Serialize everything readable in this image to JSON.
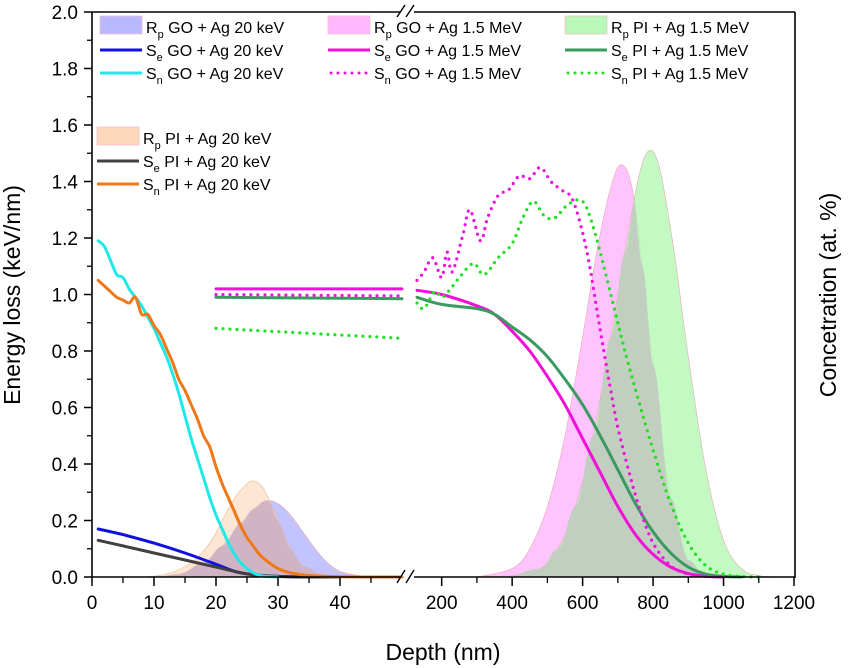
{
  "chart_data": {
    "type": "line",
    "title": "",
    "xlabel": "Depth (nm)",
    "ylabel": "Energy loss (keV/nm)",
    "ylabel_right": "Concetration (at. %)",
    "ylim": [
      0,
      2.0
    ],
    "yticks": [
      "0.0",
      "0.2",
      "0.4",
      "0.6",
      "0.8",
      "1.0",
      "1.2",
      "1.4",
      "1.6",
      "1.8",
      "2.0"
    ],
    "x_segments": [
      {
        "name": "low",
        "xlim": [
          0,
          50
        ],
        "xticks": [
          "0",
          "10",
          "20",
          "30",
          "40"
        ]
      },
      {
        "name": "high",
        "xlim": [
          120,
          1200
        ],
        "xticks": [
          "200",
          "400",
          "600",
          "800",
          "1000",
          "1200"
        ]
      }
    ],
    "axis_break": "between 50 and 120 nm",
    "grid": false,
    "legend": [
      {
        "group": "20keV-GO",
        "placement": "top-left",
        "items": [
          {
            "key": "Rp_GO_20keV",
            "main": "R",
            "sub": "p",
            "rest": " GO + Ag 20 keV",
            "kind": "area",
            "color": "#b8b8ff"
          },
          {
            "key": "Se_GO_20keV",
            "main": "S",
            "sub": "e",
            "rest": " GO + Ag 20 keV",
            "kind": "line",
            "color": "#1010e0"
          },
          {
            "key": "Sn_GO_20keV",
            "main": "S",
            "sub": "n",
            "rest": " GO + Ag 20 keV",
            "kind": "line",
            "color": "#20e8e8"
          }
        ]
      },
      {
        "group": "20keV-PI",
        "placement": "upper-left",
        "items": [
          {
            "key": "Rp_PI_20keV",
            "main": "R",
            "sub": "p",
            "rest": " PI + Ag 20 keV",
            "kind": "area",
            "color": "#fcd8bc"
          },
          {
            "key": "Se_PI_20keV",
            "main": "S",
            "sub": "e",
            "rest": " PI + Ag 20 keV",
            "kind": "line",
            "color": "#404040"
          },
          {
            "key": "Sn_PI_20keV",
            "main": "S",
            "sub": "n",
            "rest": " PI + Ag 20 keV",
            "kind": "line",
            "color": "#f07818"
          }
        ]
      },
      {
        "group": "1.5MeV-GO",
        "placement": "top-center",
        "items": [
          {
            "key": "Rp_GO_1.5MeV",
            "main": "R",
            "sub": "p",
            "rest": " GO + Ag 1.5 MeV",
            "kind": "area",
            "color": "#ffb8ff"
          },
          {
            "key": "Se_GO_1.5MeV",
            "main": "S",
            "sub": "e",
            "rest": " GO + Ag 1.5 MeV",
            "kind": "line",
            "color": "#f010d8"
          },
          {
            "key": "Sn_GO_1.5MeV",
            "main": "S",
            "sub": "n",
            "rest": " GO + Ag 1.5 MeV",
            "kind": "dot",
            "color": "#f010e0"
          }
        ]
      },
      {
        "group": "1.5MeV-PI",
        "placement": "top-right",
        "items": [
          {
            "key": "Rp_PI_1.5MeV",
            "main": "R",
            "sub": "p",
            "rest": " PI + Ag 1.5 MeV",
            "kind": "area",
            "color": "#b8f8b8"
          },
          {
            "key": "Se_PI_1.5MeV",
            "main": "S",
            "sub": "e",
            "rest": " PI + Ag 1.5 MeV",
            "kind": "line",
            "color": "#3a9a60"
          },
          {
            "key": "Sn_PI_1.5MeV",
            "main": "S",
            "sub": "n",
            "rest": " PI + Ag 1.5 MeV",
            "kind": "dot",
            "color": "#20e020"
          }
        ]
      }
    ],
    "series": [
      {
        "key": "Rp_GO_20keV",
        "kind": "area",
        "note": "concentration profile, shown in energy-loss units",
        "x": [
          10,
          14,
          18,
          21,
          24,
          26,
          28,
          30,
          32,
          34,
          36,
          38,
          40,
          43,
          46
        ],
        "y": [
          0.0,
          0.01,
          0.05,
          0.11,
          0.19,
          0.24,
          0.27,
          0.26,
          0.22,
          0.16,
          0.1,
          0.05,
          0.02,
          0.005,
          0.0
        ]
      },
      {
        "key": "Rp_PI_20keV",
        "kind": "area",
        "x": [
          8,
          12,
          16,
          19,
          21,
          23,
          25,
          26,
          27,
          28,
          30,
          32,
          34,
          37,
          40
        ],
        "y": [
          0.0,
          0.01,
          0.05,
          0.12,
          0.2,
          0.28,
          0.33,
          0.34,
          0.33,
          0.3,
          0.2,
          0.1,
          0.04,
          0.01,
          0.0
        ]
      },
      {
        "key": "Se_GO_20keV",
        "kind": "line",
        "x": [
          1,
          5,
          10,
          15,
          20,
          23,
          26,
          30,
          35,
          40
        ],
        "y": [
          0.17,
          0.15,
          0.12,
          0.085,
          0.045,
          0.02,
          0.008,
          0.002,
          0.0,
          0.0
        ]
      },
      {
        "key": "Se_PI_20keV",
        "kind": "line",
        "x": [
          1,
          5,
          10,
          15,
          20,
          23,
          26,
          30,
          35,
          40
        ],
        "y": [
          0.13,
          0.11,
          0.085,
          0.06,
          0.035,
          0.02,
          0.008,
          0.002,
          0.0,
          0.0
        ]
      },
      {
        "key": "Sn_GO_20keV",
        "kind": "line",
        "x": [
          1,
          2,
          3,
          4,
          5,
          6,
          7,
          8,
          9,
          10,
          11,
          12,
          13,
          14,
          15,
          16,
          17,
          18,
          19,
          20,
          21,
          22,
          23,
          24,
          25,
          26,
          27,
          28,
          30
        ],
        "y": [
          1.19,
          1.17,
          1.12,
          1.07,
          1.06,
          1.02,
          0.99,
          0.96,
          0.92,
          0.88,
          0.83,
          0.78,
          0.72,
          0.65,
          0.57,
          0.49,
          0.42,
          0.35,
          0.28,
          0.22,
          0.17,
          0.12,
          0.08,
          0.05,
          0.03,
          0.015,
          0.006,
          0.002,
          0.0
        ]
      },
      {
        "key": "Sn_PI_20keV",
        "kind": "line",
        "x": [
          1,
          2,
          3,
          4,
          5,
          6,
          7,
          8,
          9,
          10,
          11,
          12,
          13,
          14,
          15,
          16,
          17,
          18,
          19,
          20,
          21,
          22,
          23,
          24,
          25,
          26,
          27,
          28,
          30,
          32,
          35,
          40,
          50
        ],
        "y": [
          1.05,
          1.03,
          1.01,
          0.99,
          0.98,
          0.97,
          0.99,
          0.93,
          0.93,
          0.89,
          0.86,
          0.81,
          0.76,
          0.7,
          0.66,
          0.61,
          0.56,
          0.5,
          0.46,
          0.39,
          0.33,
          0.28,
          0.23,
          0.18,
          0.14,
          0.11,
          0.08,
          0.06,
          0.03,
          0.015,
          0.005,
          0.001,
          0.0
        ]
      },
      {
        "key": "Se_GO_1.5MeV",
        "kind": "line",
        "x": [
          20,
          50,
          130,
          200,
          300,
          350,
          400,
          450,
          500,
          550,
          600,
          650,
          700,
          750,
          800,
          850,
          900,
          950,
          1000
        ],
        "y": [
          1.02,
          1.02,
          1.015,
          1.0,
          0.96,
          0.93,
          0.87,
          0.8,
          0.71,
          0.61,
          0.49,
          0.37,
          0.25,
          0.15,
          0.08,
          0.035,
          0.012,
          0.003,
          0.0
        ]
      },
      {
        "key": "Se_PI_1.5MeV",
        "kind": "line",
        "x": [
          20,
          50,
          130,
          200,
          300,
          350,
          400,
          450,
          500,
          550,
          600,
          650,
          700,
          750,
          800,
          850,
          900,
          950,
          1000,
          1050
        ],
        "y": [
          0.99,
          0.985,
          0.99,
          0.965,
          0.95,
          0.93,
          0.885,
          0.84,
          0.78,
          0.7,
          0.61,
          0.5,
          0.38,
          0.26,
          0.16,
          0.085,
          0.035,
          0.01,
          0.002,
          0.0
        ]
      },
      {
        "key": "Sn_GO_1.5MeV",
        "kind": "dot",
        "x": [
          20,
          50,
          130,
          150,
          175,
          200,
          215,
          230,
          260,
          280,
          310,
          330,
          360,
          390,
          420,
          450,
          480,
          510,
          540,
          570,
          600,
          620,
          640,
          660,
          680,
          700,
          730,
          760,
          800,
          850,
          900,
          950,
          1000
        ],
        "y": [
          1.0,
          0.995,
          1.05,
          1.08,
          1.13,
          1.06,
          1.15,
          1.08,
          1.21,
          1.3,
          1.19,
          1.27,
          1.35,
          1.37,
          1.42,
          1.41,
          1.45,
          1.4,
          1.37,
          1.34,
          1.22,
          1.1,
          0.95,
          0.8,
          0.66,
          0.53,
          0.38,
          0.25,
          0.12,
          0.04,
          0.01,
          0.002,
          0.0
        ]
      },
      {
        "key": "Sn_PI_1.5MeV",
        "kind": "dot",
        "x": [
          20,
          50,
          130,
          150,
          180,
          200,
          225,
          250,
          290,
          320,
          360,
          400,
          430,
          460,
          490,
          520,
          560,
          600,
          630,
          660,
          690,
          720,
          760,
          800,
          850,
          900,
          950,
          1000,
          1050,
          1100
        ],
        "y": [
          0.88,
          0.845,
          0.97,
          0.95,
          1.01,
          0.99,
          1.02,
          1.06,
          1.11,
          1.07,
          1.13,
          1.18,
          1.27,
          1.33,
          1.28,
          1.27,
          1.32,
          1.33,
          1.24,
          1.1,
          0.95,
          0.8,
          0.62,
          0.45,
          0.26,
          0.12,
          0.04,
          0.01,
          0.002,
          0.0
        ]
      },
      {
        "key": "Rp_GO_1.5MeV",
        "kind": "area",
        "x": [
          300,
          400,
          450,
          500,
          550,
          600,
          640,
          680,
          710,
          740,
          770,
          800,
          850,
          900,
          950
        ],
        "y": [
          0.0,
          0.03,
          0.1,
          0.25,
          0.5,
          0.85,
          1.15,
          1.38,
          1.46,
          1.38,
          1.1,
          0.75,
          0.28,
          0.06,
          0.0
        ]
      },
      {
        "key": "Rp_PI_1.5MeV",
        "kind": "area",
        "x": [
          380,
          480,
          530,
          580,
          630,
          680,
          720,
          760,
          790,
          820,
          860,
          900,
          950,
          1000,
          1050,
          1100,
          1150
        ],
        "y": [
          0.0,
          0.03,
          0.1,
          0.25,
          0.5,
          0.85,
          1.15,
          1.42,
          1.51,
          1.44,
          1.15,
          0.78,
          0.38,
          0.13,
          0.03,
          0.005,
          0.0
        ]
      }
    ]
  }
}
